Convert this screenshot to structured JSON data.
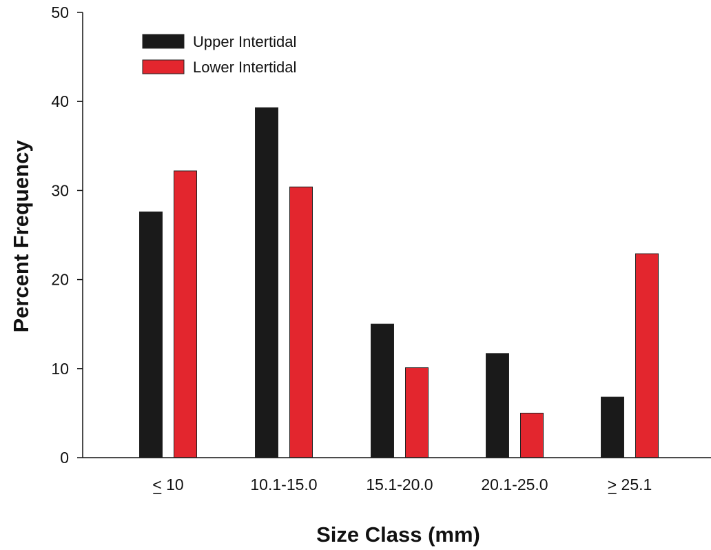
{
  "chart_data": {
    "type": "bar",
    "title": "",
    "xlabel": "Size Class (mm)",
    "ylabel": "Percent Frequency",
    "ylim": [
      0,
      50
    ],
    "yticks": [
      0,
      10,
      20,
      30,
      40,
      50
    ],
    "categories": [
      "< 10",
      "10.1-15.0",
      "15.1-20.0",
      "20.1-25.0",
      "> 25.1"
    ],
    "series": [
      {
        "name": "Upper Intertidal",
        "color": "#1a1a1a",
        "values": [
          27.6,
          39.3,
          15.0,
          11.7,
          6.8
        ]
      },
      {
        "name": "Lower Intertidal",
        "color": "#e3262e",
        "values": [
          32.2,
          30.4,
          10.1,
          5.0,
          22.9
        ]
      }
    ],
    "grid": false,
    "legend": "top-left"
  }
}
